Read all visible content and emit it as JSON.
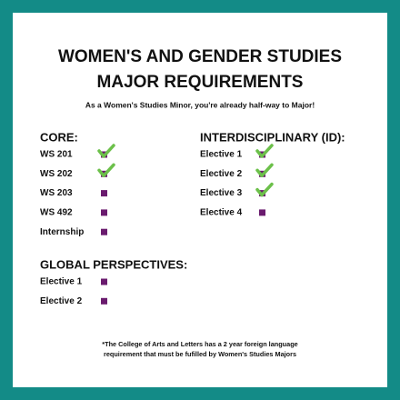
{
  "header": {
    "title_lines": [
      "WOMEN'S AND GENDER STUDIES",
      "MAJOR REQUIREMENTS"
    ],
    "subtitle": "As a Women's Studies Minor, you're already half-way to Major!"
  },
  "sections": [
    {
      "heading": "CORE:",
      "items": [
        {
          "label": "WS 201",
          "completed": true
        },
        {
          "label": "WS 202",
          "completed": true
        },
        {
          "label": "WS 203",
          "completed": false
        },
        {
          "label": "WS 492",
          "completed": false
        },
        {
          "label": "Internship",
          "completed": false
        }
      ]
    },
    {
      "heading": "INTERDISCIPLINARY (ID):",
      "items": [
        {
          "label": "Elective 1",
          "completed": true
        },
        {
          "label": "Elective 2",
          "completed": true
        },
        {
          "label": "Elective 3",
          "completed": true
        },
        {
          "label": "Elective 4",
          "completed": false
        }
      ]
    },
    {
      "heading": "GLOBAL PERSPECTIVES:",
      "items": [
        {
          "label": "Elective 1",
          "completed": false
        },
        {
          "label": "Elective 2",
          "completed": false
        }
      ]
    }
  ],
  "footnote_lines": [
    "*The College of Arts and Letters has a 2 year foreign language",
    "requirement that must be fufilled by Women's Studies Majors"
  ]
}
